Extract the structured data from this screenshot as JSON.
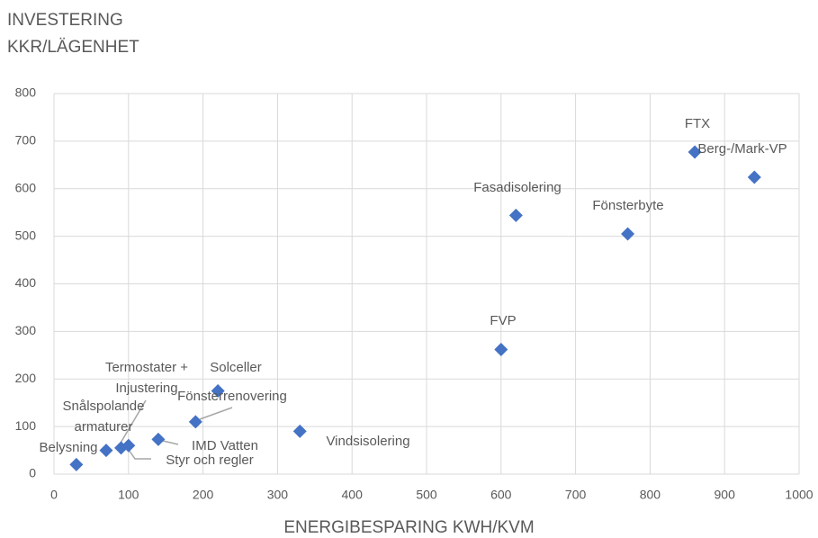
{
  "chart_data": {
    "type": "scatter",
    "y_label": "INVESTERING KKR/LÄGENHET",
    "x_label": "ENERGIBESPARING KWH/KVM",
    "color": "#4472c4",
    "grid": true,
    "xlim": [
      0,
      1000
    ],
    "xticks": [
      0,
      100,
      200,
      300,
      400,
      500,
      600,
      700,
      800,
      900,
      1000
    ],
    "ylim": [
      0,
      800
    ],
    "yticks": [
      0,
      100,
      200,
      300,
      400,
      500,
      600,
      700,
      800
    ],
    "labels": [
      "Belysning",
      "Snålspolande armaturer",
      "Termostater + Injustering",
      "Styr och regler",
      "IMD Vatten",
      "Fönsterrenovering",
      "Solceller",
      "Vindsisolering",
      "FVP",
      "Fasadisolering",
      "Fönsterbyte",
      "FTX",
      "Berg-/Mark-VP"
    ],
    "x": [
      30,
      70,
      90,
      100,
      140,
      190,
      220,
      330,
      600,
      620,
      770,
      860,
      940
    ],
    "values": [
      20,
      50,
      55,
      60,
      73,
      110,
      175,
      90,
      262,
      544,
      505,
      677,
      624
    ]
  }
}
